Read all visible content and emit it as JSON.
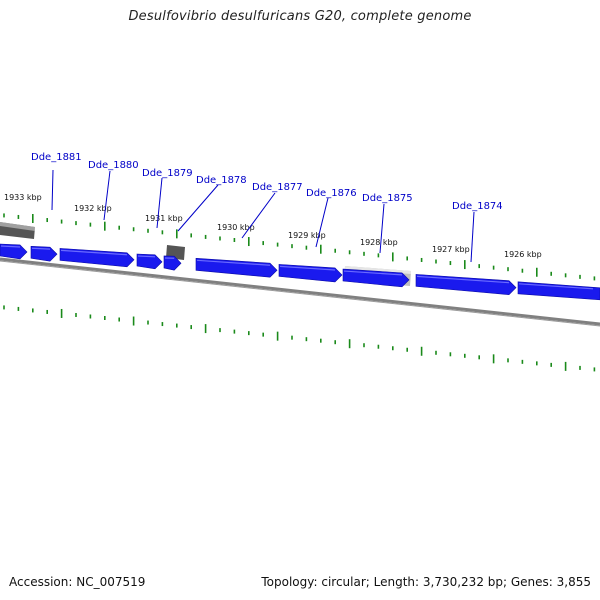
{
  "title": "Desulfovibrio desulfuricans G20, complete genome",
  "footer": {
    "accession": "Accession: NC_007519",
    "summary": "Topology: circular; Length: 3,730,232 bp; Genes: 3,855"
  },
  "colors": {
    "gene_fill": "#1a1aee",
    "gene_label": "#0000c8",
    "tick": "#1a8a1a",
    "backbone": "#7a7a7a",
    "feature_dark": "#555555",
    "feature_light": "#c0c0c0"
  },
  "kbp_labels": [
    "1933 kbp",
    "1932 kbp",
    "1931 kbp",
    "1930 kbp",
    "1929 kbp",
    "1928 kbp",
    "1927 kbp",
    "1926 kbp"
  ],
  "gene_labels": [
    "Dde_1881",
    "Dde_1880",
    "Dde_1879",
    "Dde_1878",
    "Dde_1877",
    "Dde_1876",
    "Dde_1875",
    "Dde_1874"
  ]
}
